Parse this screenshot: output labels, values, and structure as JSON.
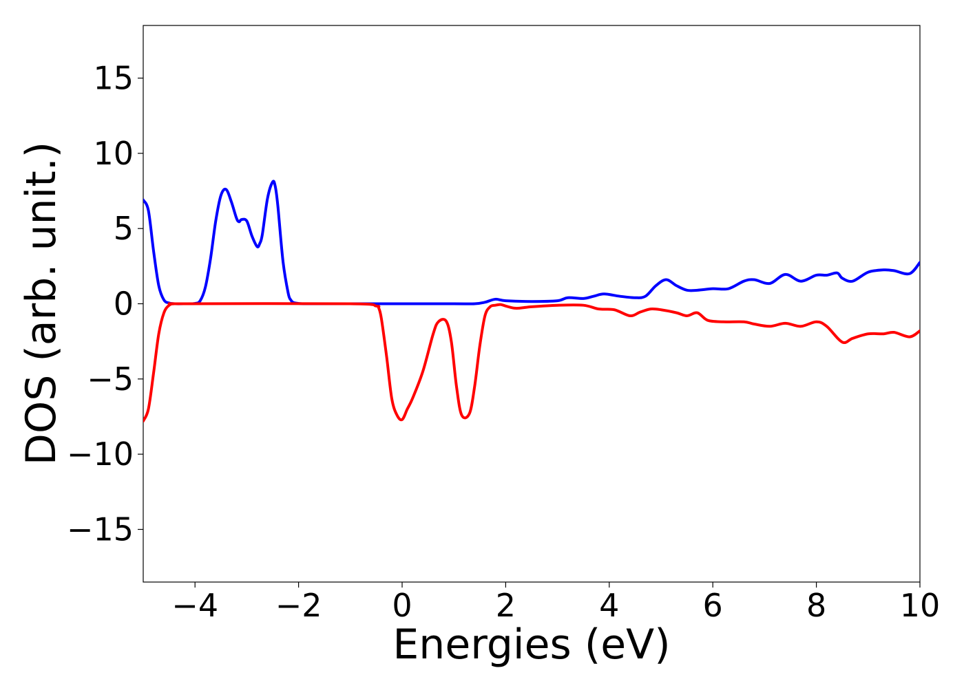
{
  "chart_data": {
    "type": "line",
    "title": "",
    "xlabel": "Energies (eV)",
    "ylabel": "DOS (arb. unit.)",
    "xlim": [
      -5,
      10
    ],
    "ylim": [
      -18.5,
      18.5
    ],
    "x_ticks": [
      -4,
      -2,
      0,
      2,
      4,
      6,
      8,
      10
    ],
    "x_tick_labels": [
      "−4",
      "−2",
      "0",
      "2",
      "4",
      "6",
      "8",
      "10"
    ],
    "y_ticks": [
      15,
      10,
      5,
      0,
      -5,
      -10,
      -15
    ],
    "y_tick_labels": [
      "15",
      "10",
      "5",
      "0",
      "−5",
      "−10",
      "−15"
    ],
    "grid": false,
    "legend": "none",
    "series": [
      {
        "color": "#0000ff",
        "x": [
          -5.0,
          -4.9,
          -4.8,
          -4.7,
          -4.6,
          -4.5,
          -4.4,
          -4.2,
          -4.0,
          -3.9,
          -3.8,
          -3.7,
          -3.6,
          -3.5,
          -3.4,
          -3.3,
          -3.2,
          -3.15,
          -3.1,
          -3.0,
          -2.9,
          -2.8,
          -2.75,
          -2.7,
          -2.6,
          -2.5,
          -2.45,
          -2.4,
          -2.3,
          -2.2,
          -2.15,
          -2.1,
          -2.0,
          -1.9,
          -1.8,
          -1.7,
          -1.6,
          -1.5,
          -1.0,
          0.0,
          1.0,
          1.4,
          1.6,
          1.8,
          2.0,
          2.5,
          3.0,
          3.2,
          3.5,
          3.7,
          3.9,
          4.2,
          4.5,
          4.7,
          4.9,
          5.1,
          5.3,
          5.5,
          5.7,
          6.0,
          6.3,
          6.6,
          6.8,
          7.1,
          7.4,
          7.7,
          8.0,
          8.2,
          8.4,
          8.5,
          8.7,
          9.0,
          9.3,
          9.5,
          9.8,
          10.0
        ],
        "y": [
          6.9,
          6.2,
          3.5,
          1.2,
          0.25,
          0.05,
          0.0,
          0.0,
          0.02,
          0.2,
          1.1,
          3.0,
          5.5,
          7.2,
          7.6,
          6.8,
          5.7,
          5.45,
          5.6,
          5.5,
          4.5,
          3.8,
          4.0,
          4.6,
          7.0,
          8.1,
          7.8,
          6.5,
          2.8,
          0.7,
          0.25,
          0.08,
          0.02,
          0.0,
          0.0,
          0.0,
          0.0,
          0.0,
          0.0,
          0.0,
          0.0,
          0.0,
          0.1,
          0.3,
          0.2,
          0.15,
          0.2,
          0.4,
          0.35,
          0.5,
          0.65,
          0.5,
          0.4,
          0.5,
          1.2,
          1.6,
          1.2,
          0.9,
          0.9,
          1.0,
          1.0,
          1.5,
          1.6,
          1.35,
          1.95,
          1.5,
          1.9,
          1.9,
          2.05,
          1.7,
          1.5,
          2.1,
          2.25,
          2.2,
          2.0,
          2.75
        ]
      },
      {
        "color": "#ff0000",
        "x": [
          -5.0,
          -4.9,
          -4.8,
          -4.7,
          -4.6,
          -4.5,
          -4.4,
          -4.2,
          -1.0,
          -0.5,
          -0.45,
          -0.4,
          -0.3,
          -0.2,
          -0.1,
          0.0,
          0.1,
          0.2,
          0.4,
          0.6,
          0.7,
          0.85,
          0.95,
          1.05,
          1.15,
          1.3,
          1.4,
          1.5,
          1.6,
          1.7,
          1.8,
          1.9,
          2.0,
          2.2,
          2.5,
          3.0,
          3.5,
          3.8,
          4.1,
          4.4,
          4.6,
          4.8,
          5.0,
          5.3,
          5.5,
          5.7,
          5.9,
          6.2,
          6.6,
          6.8,
          7.1,
          7.4,
          7.7,
          8.0,
          8.2,
          8.5,
          8.7,
          9.0,
          9.3,
          9.5,
          9.8,
          10.0
        ],
        "y": [
          -7.8,
          -7.0,
          -4.6,
          -2.0,
          -0.6,
          -0.1,
          0.0,
          0.0,
          0.0,
          -0.15,
          -0.3,
          -1.0,
          -3.5,
          -6.3,
          -7.4,
          -7.7,
          -7.0,
          -6.3,
          -4.5,
          -2.0,
          -1.2,
          -1.15,
          -2.5,
          -5.5,
          -7.4,
          -7.3,
          -5.5,
          -2.8,
          -0.8,
          -0.2,
          -0.1,
          -0.05,
          -0.15,
          -0.3,
          -0.2,
          -0.1,
          -0.1,
          -0.35,
          -0.4,
          -0.8,
          -0.55,
          -0.35,
          -0.4,
          -0.6,
          -0.8,
          -0.6,
          -1.1,
          -1.2,
          -1.2,
          -1.35,
          -1.5,
          -1.3,
          -1.5,
          -1.2,
          -1.5,
          -2.55,
          -2.3,
          -2.0,
          -2.0,
          -1.9,
          -2.2,
          -1.8
        ]
      }
    ]
  }
}
